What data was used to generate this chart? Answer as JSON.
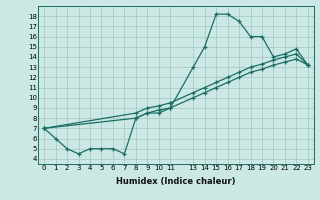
{
  "xlabel": "Humidex (Indice chaleur)",
  "bg_color": "#cce8e4",
  "grid_color": "#a8ccc8",
  "line_color": "#1a6e65",
  "xlim": [
    -0.5,
    23.5
  ],
  "ylim": [
    3.5,
    19.0
  ],
  "xticks": [
    0,
    1,
    2,
    3,
    4,
    5,
    6,
    7,
    8,
    9,
    10,
    11,
    13,
    14,
    15,
    16,
    17,
    18,
    19,
    20,
    21,
    22,
    23
  ],
  "xtick_labels": [
    "0",
    "1",
    "2",
    "3",
    "4",
    "5",
    "6",
    "7",
    "8",
    "9",
    "10",
    "11",
    "13",
    "14",
    "15",
    "16",
    "17",
    "18",
    "19",
    "20",
    "21",
    "22",
    "23"
  ],
  "yticks": [
    4,
    5,
    6,
    7,
    8,
    9,
    10,
    11,
    12,
    13,
    14,
    15,
    16,
    17,
    18
  ],
  "line1_x": [
    0,
    1,
    2,
    3,
    4,
    5,
    6,
    7,
    8,
    9,
    10,
    11,
    13,
    14,
    15,
    16,
    17,
    18,
    19,
    20,
    21,
    22,
    23
  ],
  "line1_y": [
    7,
    6,
    5,
    4.5,
    5,
    5,
    5,
    4.5,
    8,
    8.5,
    8.5,
    9,
    13,
    15,
    18.2,
    18.2,
    17.5,
    16,
    16,
    14,
    14.3,
    14.8,
    13.2
  ],
  "line2_x": [
    0,
    8,
    9,
    10,
    11,
    13,
    14,
    15,
    16,
    17,
    18,
    19,
    20,
    21,
    22,
    23
  ],
  "line2_y": [
    7,
    8.5,
    9,
    9.2,
    9.5,
    10.5,
    11,
    11.5,
    12,
    12.5,
    13,
    13.3,
    13.7,
    14,
    14.3,
    13.2
  ],
  "line3_x": [
    0,
    8,
    9,
    10,
    11,
    13,
    14,
    15,
    16,
    17,
    18,
    19,
    20,
    21,
    22,
    23
  ],
  "line3_y": [
    7,
    8.0,
    8.5,
    8.8,
    9.0,
    10.0,
    10.5,
    11.0,
    11.5,
    12.0,
    12.5,
    12.8,
    13.2,
    13.5,
    13.8,
    13.2
  ]
}
